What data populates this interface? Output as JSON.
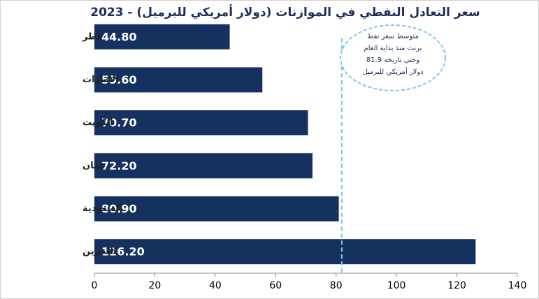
{
  "chart_data": {
    "type": "bar",
    "orientation": "horizontal",
    "title": "سعر التعادل النفطي في الموازنات (دولار أمريكي للبرميل) - 2023",
    "categories": [
      "قطر",
      "الامارات",
      "الكويت",
      "عمان",
      "السعودية",
      "البحرين"
    ],
    "values": [
      44.8,
      55.6,
      70.7,
      72.2,
      80.9,
      126.2
    ],
    "value_labels": [
      "44.80",
      "55.60",
      "70.70",
      "72.20",
      "80.90",
      "126.20"
    ],
    "color": "#14315f",
    "xlim": [
      0,
      140
    ],
    "xticks": [
      0,
      20,
      40,
      60,
      80,
      100,
      120,
      140
    ],
    "reference_line": 81.9,
    "reference_color": "#7ec8e3",
    "annotation": [
      "متوسط سعر نفط",
      "برنت منذ بداية العام",
      "وحتى تاريخه 81.9",
      "دولار أمريكي للبرميل"
    ]
  }
}
